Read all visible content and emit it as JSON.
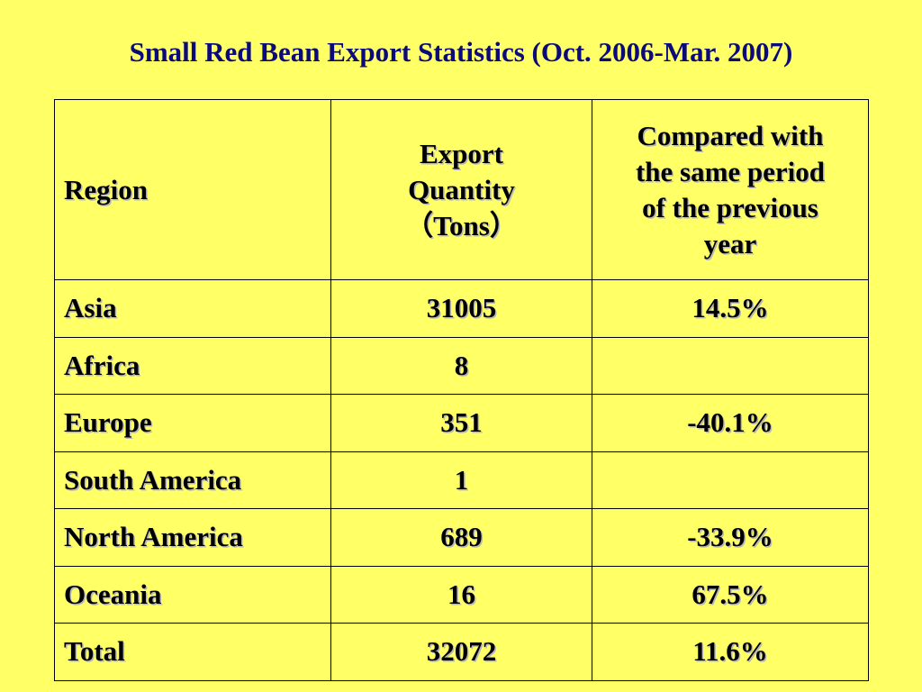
{
  "slide": {
    "title": "Small Red Bean Export Statistics (Oct. 2006-Mar. 2007)",
    "background_color": "#ffff66",
    "title_color": "#0a0a7a"
  },
  "table": {
    "headers": {
      "region": "Region",
      "quantity_line1": "Export",
      "quantity_line2": "Quantity",
      "quantity_line3": "（Tons）",
      "compare_line1": "Compared with",
      "compare_line2": "the same period",
      "compare_line3": "of the previous",
      "compare_line4": "year"
    },
    "rows": [
      {
        "region": "Asia",
        "quantity": "31005",
        "change": "14.5%"
      },
      {
        "region": "Africa",
        "quantity": "8",
        "change": ""
      },
      {
        "region": "Europe",
        "quantity": "351",
        "change": "-40.1%"
      },
      {
        "region": "South America",
        "quantity": "1",
        "change": ""
      },
      {
        "region": "North America",
        "quantity": "689",
        "change": "-33.9%"
      },
      {
        "region": "Oceania",
        "quantity": "16",
        "change": "67.5%"
      },
      {
        "region": "Total",
        "quantity": "32072",
        "change": "11.6%"
      }
    ]
  }
}
